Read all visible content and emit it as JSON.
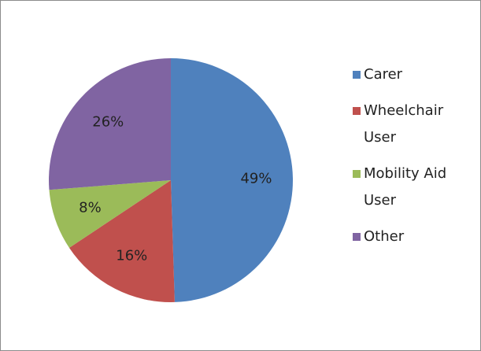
{
  "chart_data": {
    "type": "pie",
    "categories": [
      "Carer",
      "Wheelchair User",
      "Mobility Aid User",
      "Other"
    ],
    "values": [
      49,
      16,
      8,
      26
    ],
    "value_labels": [
      "49%",
      "16%",
      "8%",
      "26%"
    ],
    "colors": [
      "#4f81bd",
      "#c0504d",
      "#9bbb59",
      "#8064a2"
    ],
    "legend": "right"
  }
}
